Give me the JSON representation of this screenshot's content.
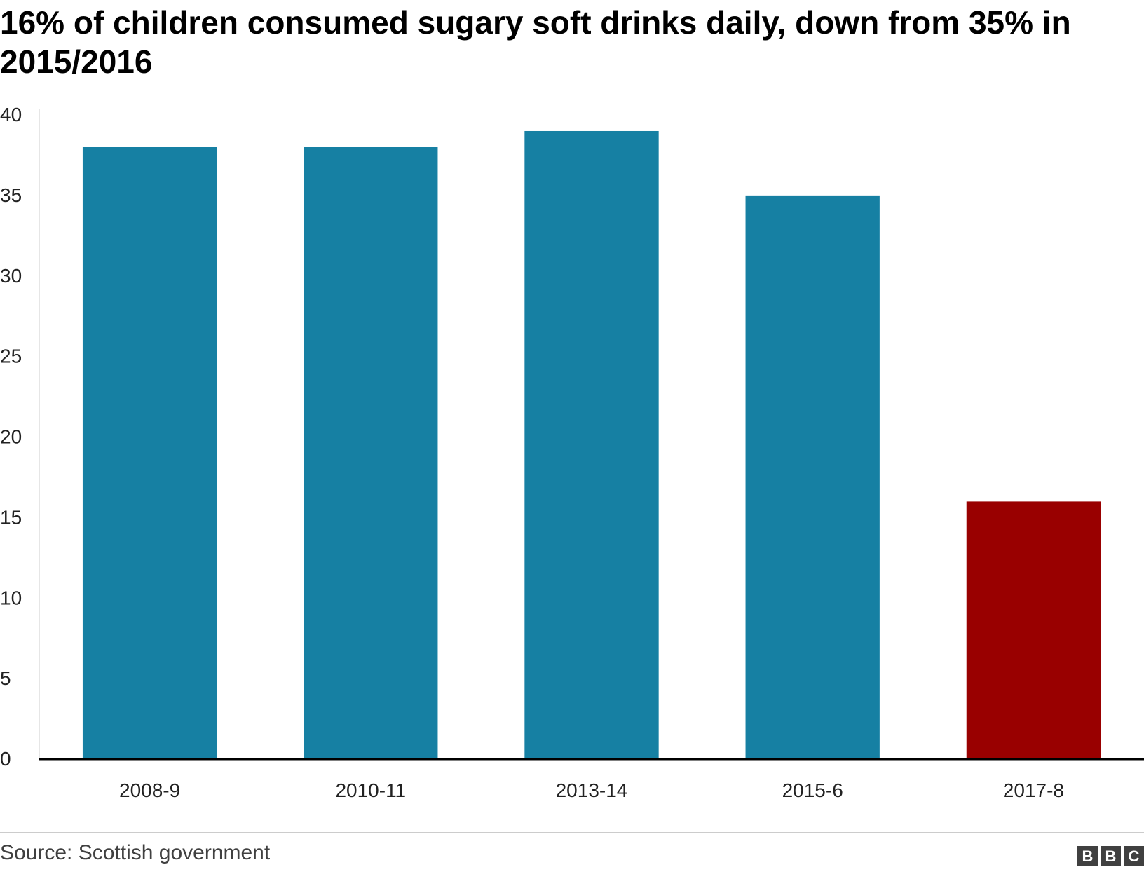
{
  "title": "16% of children consumed sugary soft drinks daily, down from 35% in 2015/2016",
  "source": "Source: Scottish government",
  "logo": [
    "B",
    "B",
    "C"
  ],
  "colors": {
    "bar": "#1680a3",
    "highlight": "#990000",
    "axis": "#000000",
    "grid": "#dddddd"
  },
  "chart_data": {
    "type": "bar",
    "categories": [
      "2008-9",
      "2010-11",
      "2013-14",
      "2015-6",
      "2017-8"
    ],
    "values": [
      38,
      38,
      39,
      35,
      16
    ],
    "highlight_index": 4,
    "title": "16% of children consumed sugary soft drinks daily, down from 35% in 2015/2016",
    "xlabel": "",
    "ylabel": "",
    "ylim": [
      0,
      40
    ],
    "yticks": [
      0,
      5,
      10,
      15,
      20,
      25,
      30,
      35,
      40
    ],
    "grid": false,
    "legend": "none"
  }
}
